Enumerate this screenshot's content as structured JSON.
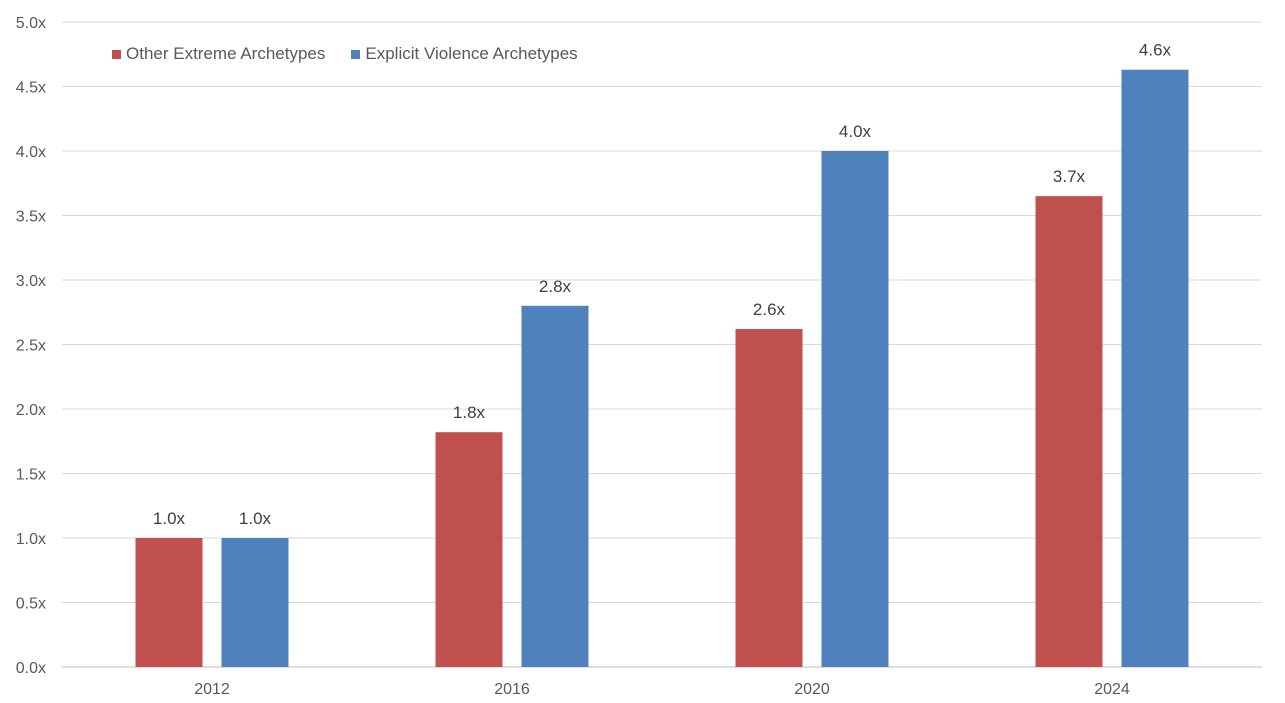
{
  "chart_data": {
    "type": "bar",
    "title": "",
    "xlabel": "",
    "ylabel": "",
    "categories": [
      "2012",
      "2016",
      "2020",
      "2024"
    ],
    "series": [
      {
        "name": "Other Extreme Archetypes",
        "color": "#C0504D",
        "values": [
          1.0,
          1.82,
          2.62,
          3.65
        ],
        "labels": [
          "1.0x",
          "1.8x",
          "2.6x",
          "3.7x"
        ]
      },
      {
        "name": "Explicit Violence Archetypes",
        "color": "#4F81BD",
        "values": [
          1.0,
          2.8,
          4.0,
          4.63
        ],
        "labels": [
          "1.0x",
          "2.8x",
          "4.0x",
          "4.6x"
        ]
      }
    ],
    "ylim": [
      0,
      5
    ],
    "yticks": [
      "0.0x",
      "0.5x",
      "1.0x",
      "1.5x",
      "2.0x",
      "2.5x",
      "3.0x",
      "3.5x",
      "4.0x",
      "4.5x",
      "5.0x"
    ],
    "grid": true,
    "legend_position": "top-left"
  }
}
